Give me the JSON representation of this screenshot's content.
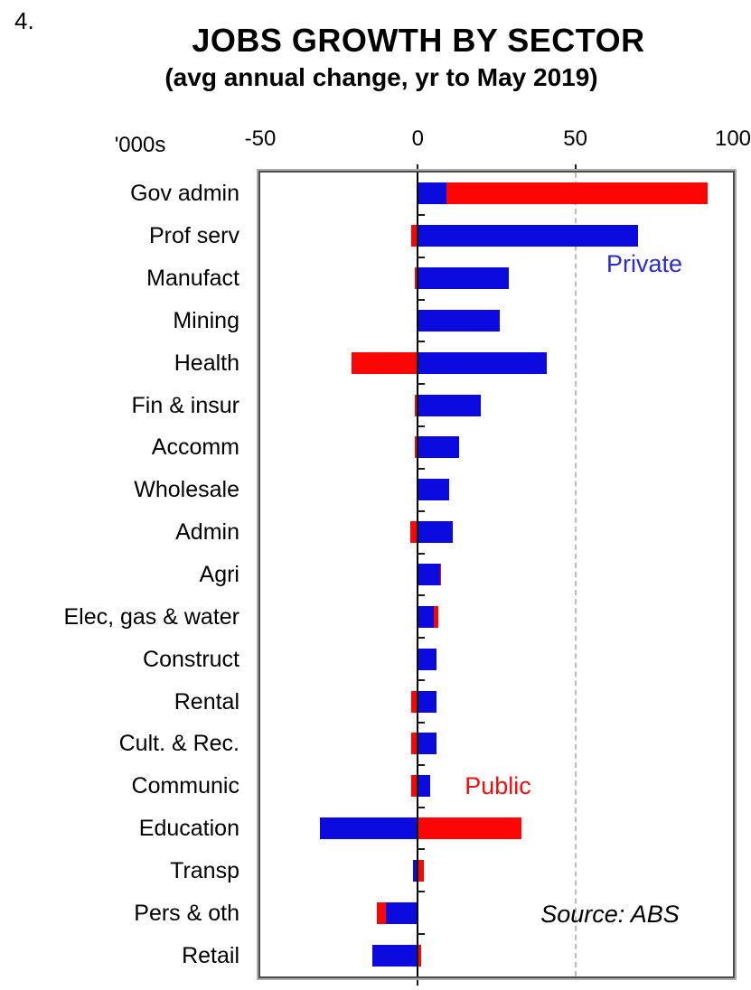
{
  "page": {
    "figure_number": "4."
  },
  "chart_data": {
    "type": "bar",
    "orientation": "horizontal",
    "stacked": true,
    "title": "JOBS GROWTH BY SECTOR",
    "subtitle": "(avg annual change, yr to May 2019)",
    "unit_label": "'000s",
    "xlim": [
      -50,
      100
    ],
    "x_ticks": [
      -50,
      0,
      50,
      100
    ],
    "gridline_x": 50,
    "grid": "dashed vertical at 50, solid axis at 0",
    "legend_position": "in-plot text annotations",
    "categories": [
      "Gov admin",
      "Prof serv",
      "Manufact",
      "Mining",
      "Health",
      "Fin & insur",
      "Accomm",
      "Wholesale",
      "Admin",
      "Agri",
      "Elec, gas & water",
      "Construct",
      "Rental",
      "Cult. & Rec.",
      "Communic",
      "Education",
      "Transp",
      "Pers & oth",
      "Retail"
    ],
    "series": [
      {
        "name": "Private",
        "color": "#0b0be0",
        "values": [
          9,
          70,
          29,
          26,
          41,
          20,
          13,
          10,
          11,
          7,
          5,
          6,
          6,
          6,
          4,
          -31,
          -1.5,
          -10,
          -14.5
        ]
      },
      {
        "name": "Public",
        "color": "#fb0505",
        "values": [
          83,
          -2,
          -1,
          0,
          -21,
          -1,
          -1,
          -0.5,
          -2.5,
          0.5,
          1.5,
          -0.5,
          -2,
          -2,
          -2,
          33,
          2,
          -3,
          1
        ]
      }
    ],
    "annotations": [
      {
        "id": "private",
        "text": "Private",
        "color": "#2a2ad8"
      },
      {
        "id": "public",
        "text": "Public",
        "color": "#f50d0d"
      },
      {
        "id": "source",
        "text": "Source: ABS",
        "color": "#000000"
      }
    ]
  }
}
